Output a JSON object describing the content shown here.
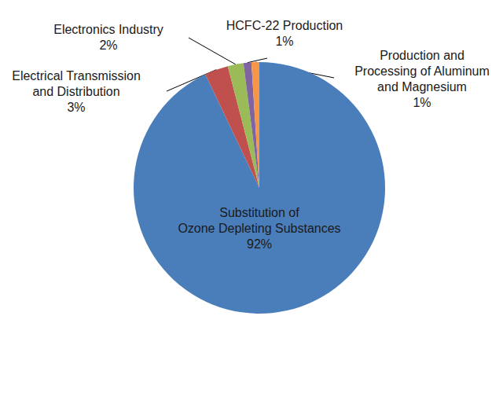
{
  "chart_data": {
    "type": "pie",
    "categories": [
      "Substitution of\nOzone Depleting Substances",
      "Electrical Transmission\nand Distribution",
      "Electronics Industry",
      "HCFC-22 Production",
      "Production and\nProcessing of Aluminum\nand Magnesium"
    ],
    "values": [
      92,
      3,
      2,
      1,
      1
    ],
    "value_labels": [
      "92%",
      "3%",
      "2%",
      "1%",
      "1%"
    ],
    "colors": [
      "#4a7ebb",
      "#c0504d",
      "#9bbb59",
      "#8064a2",
      "#f79646"
    ],
    "data_labels": true
  }
}
